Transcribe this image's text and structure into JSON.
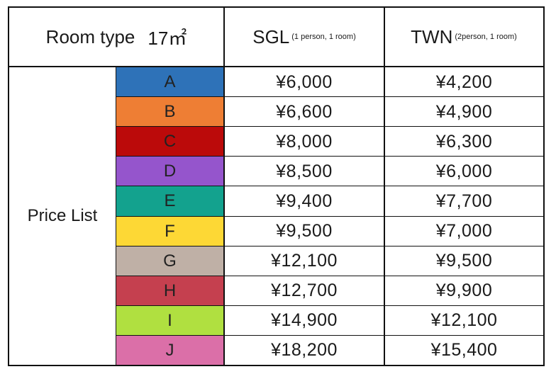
{
  "header": {
    "room_type_label": "Room type",
    "room_size": "17㎡",
    "sgl_label": "SGL",
    "sgl_note": "(1 person, 1 room)",
    "twn_label": "TWN",
    "twn_note": "(2person, 1 room)"
  },
  "price_list_label": "Price List",
  "rows": [
    {
      "grade": "A",
      "color": "#2E72B8",
      "sgl": "¥6,000",
      "twn": "¥4,200"
    },
    {
      "grade": "B",
      "color": "#EE7E34",
      "sgl": "¥6,600",
      "twn": "¥4,900"
    },
    {
      "grade": "C",
      "color": "#BB0A0A",
      "sgl": "¥8,000",
      "twn": "¥6,300"
    },
    {
      "grade": "D",
      "color": "#9555CC",
      "sgl": "¥8,500",
      "twn": "¥6,000"
    },
    {
      "grade": "E",
      "color": "#13A28E",
      "sgl": "¥9,400",
      "twn": "¥7,700"
    },
    {
      "grade": "F",
      "color": "#FDD835",
      "sgl": "¥9,500",
      "twn": "¥7,000"
    },
    {
      "grade": "G",
      "color": "#BFB0A6",
      "sgl": "¥12,100",
      "twn": "¥9,500"
    },
    {
      "grade": "H",
      "color": "#C5404F",
      "sgl": "¥12,700",
      "twn": "¥9,900"
    },
    {
      "grade": "I",
      "color": "#B0E040",
      "sgl": "¥14,900",
      "twn": "¥12,100"
    },
    {
      "grade": "J",
      "color": "#DB6FA8",
      "sgl": "¥18,200",
      "twn": "¥15,400"
    }
  ]
}
